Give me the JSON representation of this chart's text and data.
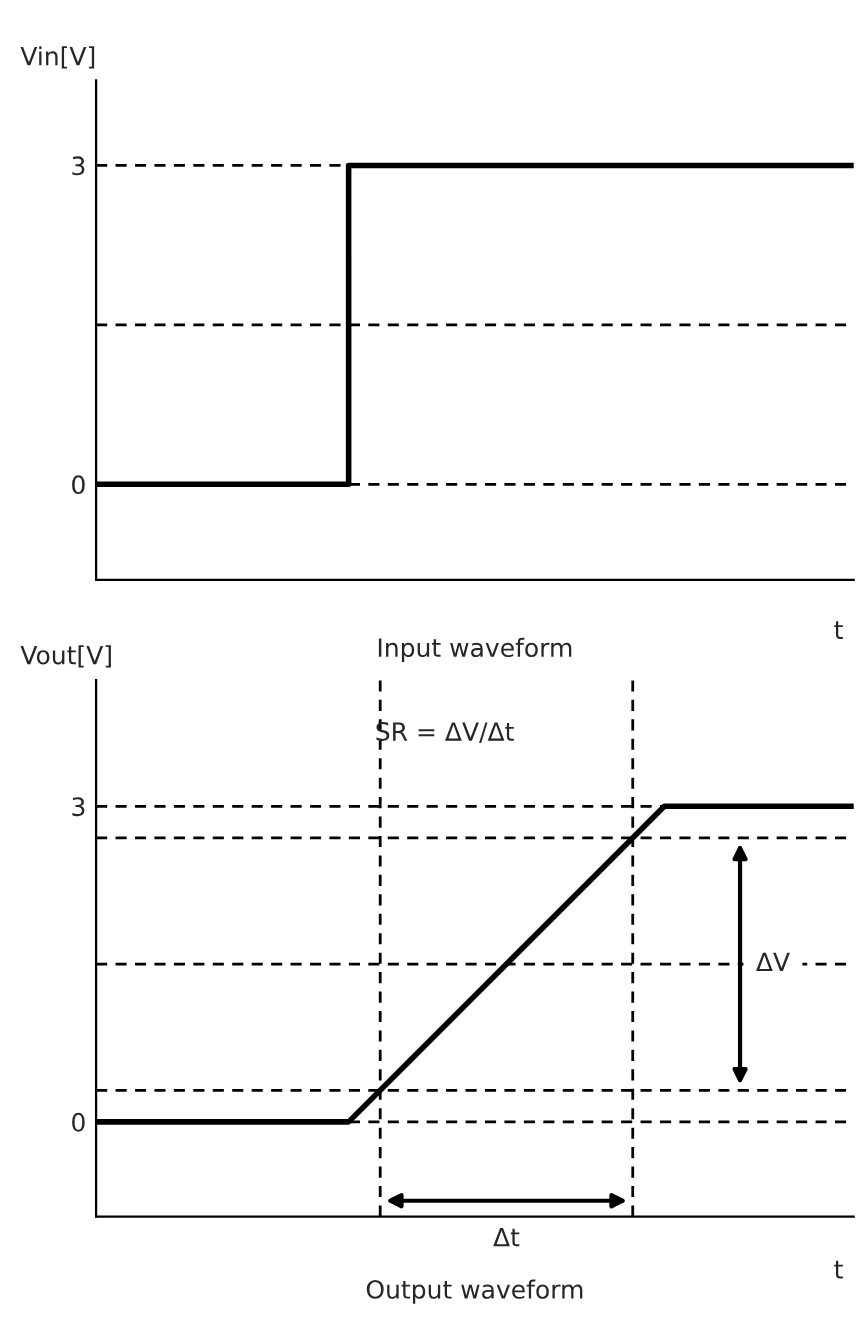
{
  "chart_data": [
    {
      "type": "step",
      "ylabel": "Vin[V]",
      "xlabel": "t",
      "categories": [
        null,
        null,
        null,
        null,
        null,
        null,
        null,
        null,
        null,
        null,
        null,
        null,
        null
      ],
      "series": [
        {
          "color": "#000000",
          "values": [
            0,
            0,
            0,
            0,
            3,
            3,
            3,
            3,
            3,
            3,
            3,
            3,
            3
          ]
        }
      ],
      "ylim": [
        -0.9,
        3.8
      ],
      "yticks": [
        0,
        3
      ],
      "line_style": "solid",
      "legend": false,
      "grid": false,
      "ref_lines": [
        {
          "axis": "y",
          "value": 0,
          "color": "#000000",
          "line_style": "dashed"
        },
        {
          "axis": "y",
          "value": 1.5,
          "color": "#000000",
          "line_style": "dashed"
        },
        {
          "axis": "y",
          "value": 3,
          "color": "#000000",
          "line_style": "dashed"
        }
      ],
      "annotations": [
        "Input waveform"
      ]
    },
    {
      "type": "line",
      "ylabel": "Vout[V]",
      "xlabel": "t",
      "categories": [
        null,
        null,
        null,
        null,
        null,
        null,
        null,
        null,
        null,
        null,
        null,
        null,
        null
      ],
      "series": [
        {
          "color": "#000000",
          "values": [
            0,
            0,
            0,
            0,
            0,
            0.6,
            1.2,
            1.8,
            2.4,
            3,
            3,
            3,
            3
          ]
        }
      ],
      "ylim": [
        -0.9,
        4.2
      ],
      "yticks": [
        0,
        3
      ],
      "line_style": "solid",
      "legend": false,
      "grid": false,
      "ref_lines": [
        {
          "axis": "y",
          "value": 0,
          "color": "#000000",
          "line_style": "dashed"
        },
        {
          "axis": "y",
          "value": 0.3,
          "color": "#000000",
          "line_style": "dashed"
        },
        {
          "axis": "y",
          "value": 1.5,
          "color": "#000000",
          "line_style": "dashed"
        },
        {
          "axis": "y",
          "value": 2.7,
          "color": "#000000",
          "line_style": "dashed"
        },
        {
          "axis": "y",
          "value": 3,
          "color": "#000000",
          "line_style": "dashed"
        }
      ],
      "annotations": [
        "Output waveform",
        {
          "text": "ΔV",
          "y": 1.5
        },
        "Δt",
        "SR = ΔV/Δt"
      ]
    }
  ]
}
